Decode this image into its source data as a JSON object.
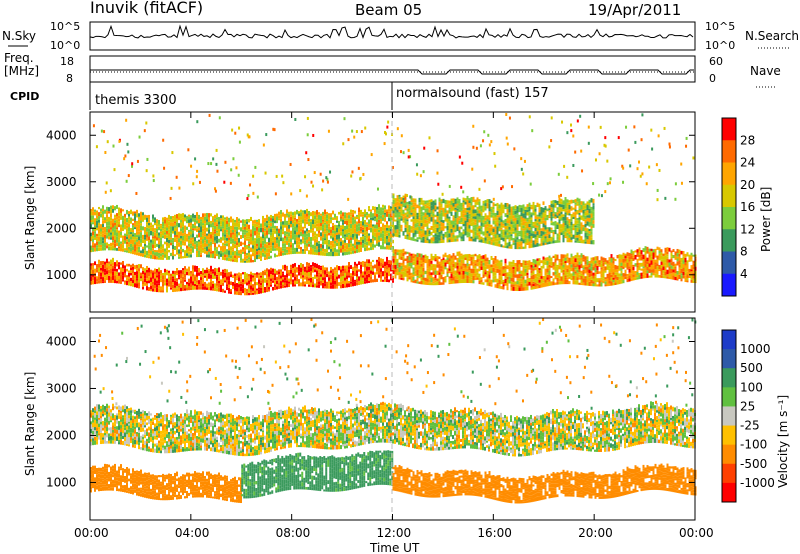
{
  "header": {
    "site": "Inuvik (fitACF)",
    "beam": "Beam 05",
    "date": "19/Apr/2011"
  },
  "nsky_panel": {
    "left_label": "N.Sky",
    "right_label": "N.Search",
    "left_ticks": [
      "10^5",
      "10^0"
    ],
    "right_ticks": [
      "10^5",
      "10^0"
    ]
  },
  "freq_panel": {
    "left_label_line1": "Freq.",
    "left_label_line2": "[MHz]",
    "right_label": "Nave",
    "left_ticks": [
      "18",
      "8"
    ],
    "right_ticks": [
      "60",
      "0"
    ]
  },
  "cpid": {
    "label": "CPID",
    "program_1": "themis 3300",
    "program_2": "normalsound (fast) 157"
  },
  "power_panel": {
    "ylabel": "Slant Range [km]",
    "yticks": [
      "4000",
      "3000",
      "2000",
      "1000"
    ],
    "colorbar_label": "Power [dB]",
    "colorbar_ticks": [
      "28",
      "24",
      "20",
      "16",
      "12",
      "8",
      "4"
    ],
    "colorbar_colors": [
      "#ff0000",
      "#ff6a00",
      "#ffa500",
      "#d8c800",
      "#7ccd3c",
      "#3a9a5c",
      "#2e5aa8",
      "#1a1aff"
    ]
  },
  "velocity_panel": {
    "ylabel": "Slant Range [km]",
    "yticks": [
      "4000",
      "3000",
      "2000",
      "1000"
    ],
    "colorbar_label": "Velocity [m s⁻¹]",
    "colorbar_ticks": [
      "1000",
      "500",
      "100",
      "25",
      "-25",
      "-100",
      "-500",
      "-1000"
    ],
    "colorbar_colors": [
      "#1e3cc8",
      "#2e5aa8",
      "#3a9a5c",
      "#60c040",
      "#c8c8c0",
      "#ffc000",
      "#ff8c00",
      "#ff4000",
      "#ff0000"
    ]
  },
  "xaxis": {
    "label": "Time UT",
    "ticks": [
      "00:00",
      "04:00",
      "08:00",
      "12:00",
      "16:00",
      "20:00",
      "00:00"
    ]
  },
  "chart_data": [
    {
      "type": "heatmap",
      "title": "Power",
      "xlabel": "Time UT",
      "ylabel": "Slant Range [km]",
      "xlim": [
        0,
        24
      ],
      "ylim": [
        200,
        4500
      ],
      "colorbar": {
        "label": "Power [dB]",
        "range": [
          0,
          32
        ],
        "ticks": [
          4,
          8,
          12,
          16,
          20,
          24,
          28
        ]
      },
      "bands": [
        {
          "range_km_from": 700,
          "range_km_to": 1150,
          "t_from": 0,
          "t_to": 12,
          "dominant_power_db": 26
        },
        {
          "range_km_from": 1400,
          "range_km_to": 2300,
          "t_from": 0,
          "t_to": 12,
          "dominant_power_db": 18
        },
        {
          "range_km_from": 800,
          "range_km_to": 1400,
          "t_from": 12,
          "t_to": 24,
          "dominant_power_db": 22
        },
        {
          "range_km_from": 1700,
          "range_km_to": 2600,
          "t_from": 12,
          "t_to": 20,
          "dominant_power_db": 16
        }
      ]
    },
    {
      "type": "heatmap",
      "title": "Velocity",
      "xlabel": "Time UT",
      "ylabel": "Slant Range [km]",
      "xlim": [
        0,
        24
      ],
      "ylim": [
        200,
        4500
      ],
      "colorbar": {
        "label": "Velocity [m s⁻¹]",
        "ticks": [
          1000,
          500,
          100,
          25,
          -25,
          -100,
          -500,
          -1000
        ]
      },
      "bands": [
        {
          "range_km_from": 1700,
          "range_km_to": 2500,
          "t_from": 0,
          "t_to": 24,
          "dominant_velocity": 0
        },
        {
          "range_km_from": 700,
          "range_km_to": 1200,
          "t_from": 0,
          "t_to": 6,
          "dominant_velocity": -300
        },
        {
          "range_km_from": 800,
          "range_km_to": 1500,
          "t_from": 6,
          "t_to": 12,
          "dominant_velocity": 200
        },
        {
          "range_km_from": 700,
          "range_km_to": 1200,
          "t_from": 12,
          "t_to": 24,
          "dominant_velocity": -300
        }
      ]
    }
  ]
}
